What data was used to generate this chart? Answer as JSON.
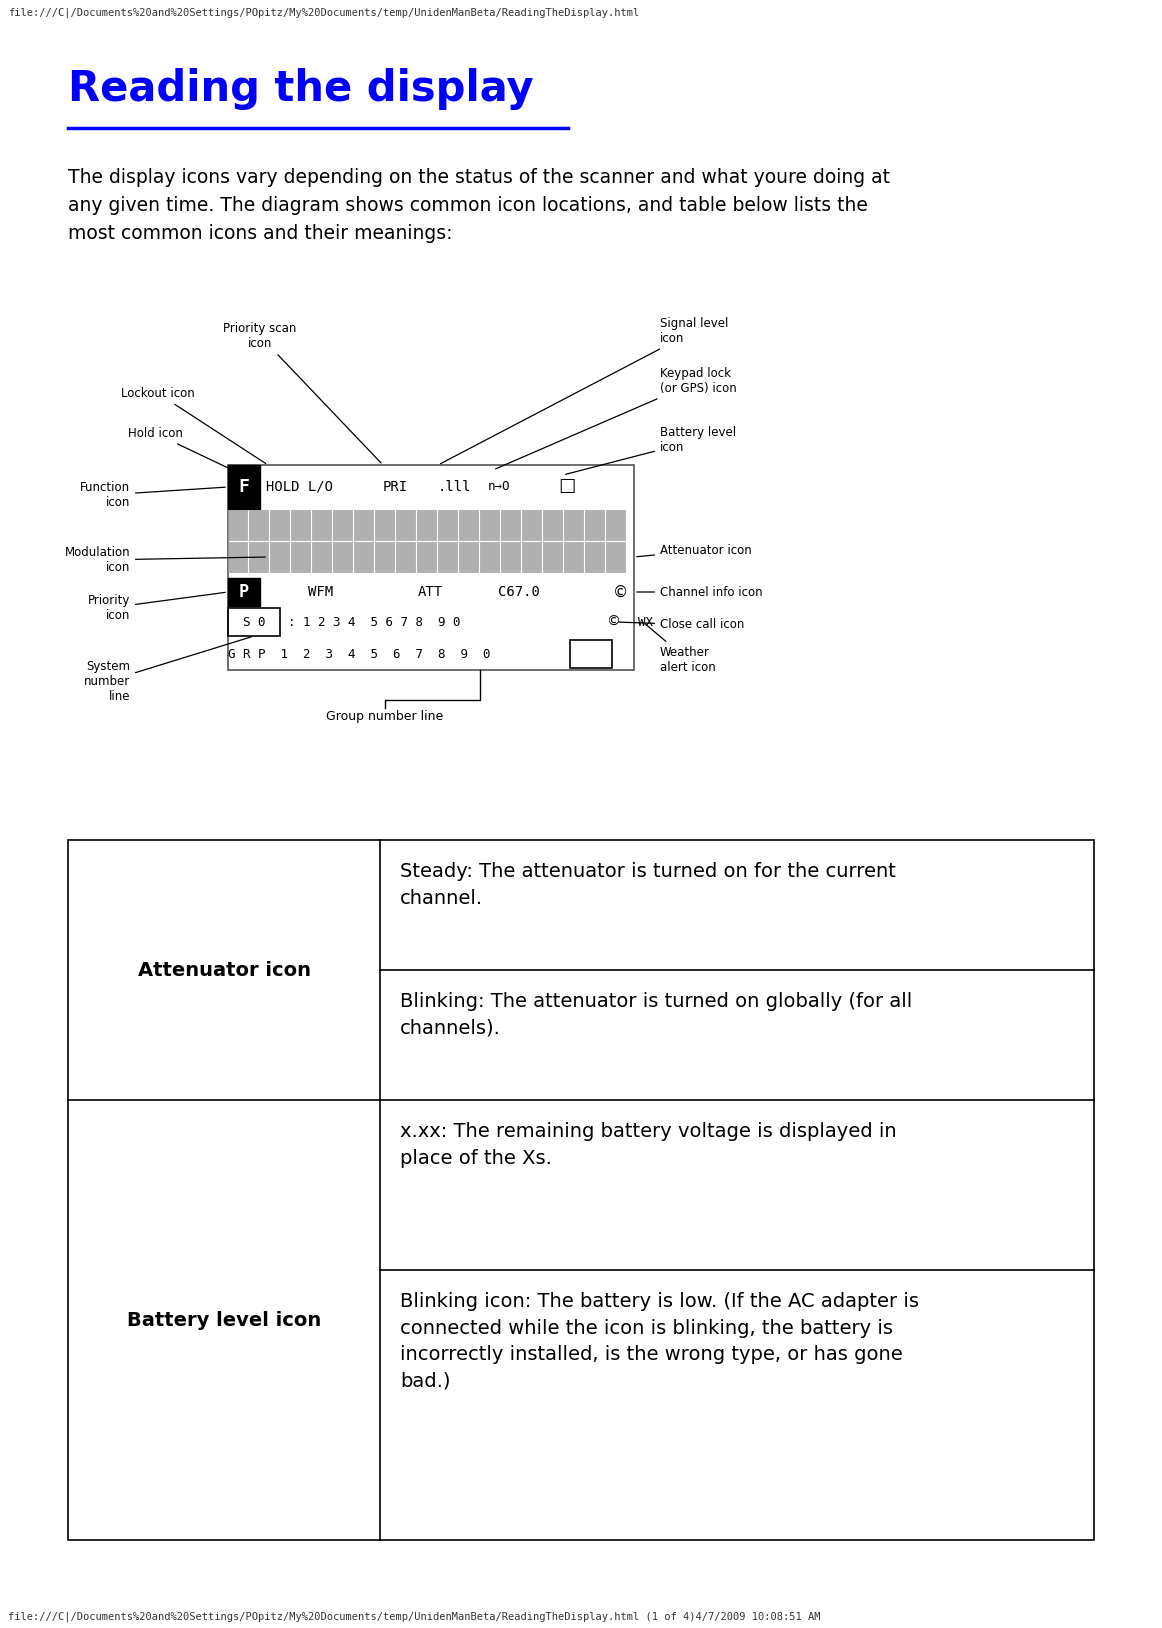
{
  "bg_color": "#ffffff",
  "header_url": "file:///C|/Documents%20and%20Settings/POpitz/My%20Documents/temp/UnidenManBeta/ReadingTheDisplay.html",
  "footer_url": "file:///C|/Documents%20and%20Settings/POpitz/My%20Documents/temp/UnidenManBeta/ReadingTheDisplay.html (1 of 4)4/7/2009 10:08:51 AM",
  "title": "Reading the display",
  "title_color": "#0000ff",
  "body_text": "The display icons vary depending on the status of the scanner and what youre doing at\nany given time. The diagram shows common icon locations, and table below lists the\nmost common icons and their meanings:",
  "table_rows": [
    {
      "header": "Attenuator icon",
      "cells": [
        "Steady: The attenuator is turned on for the current\nchannel.",
        "Blinking: The attenuator is turned on globally (for all\nchannels)."
      ]
    },
    {
      "header": "Battery level icon",
      "cells": [
        "x.xx: The remaining battery voltage is displayed in\nplace of the Xs.",
        "Blinking icon: The battery is low. (If the AC adapter is\nconnected while the icon is blinking, the battery is\nincorrectly installed, is the wrong type, or has gone\nbad.)"
      ]
    }
  ]
}
